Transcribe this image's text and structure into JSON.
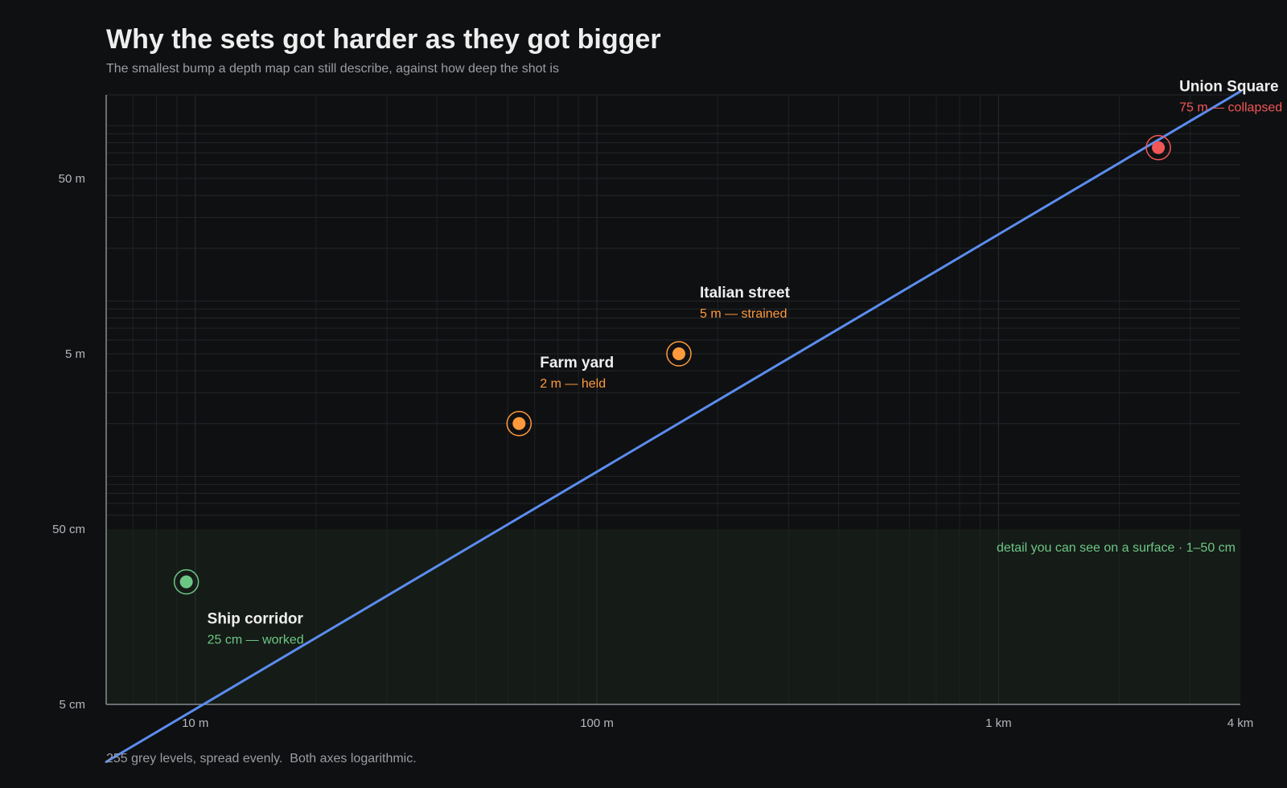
{
  "header": {
    "title": "Why the sets got harder as they got bigger",
    "subtitle": "The smallest bump a depth map can still describe, against how deep the shot is"
  },
  "footnote": "255 grey levels, spread evenly.  Both axes logarithmic.",
  "chart_data": {
    "type": "line",
    "title": "Why the sets got harder as they got bigger",
    "subtitle": "The smallest bump a depth map can still describe, against how deep the shot is",
    "x_scale": "log",
    "y_scale": "log",
    "xlim_m": [
      6,
      4000
    ],
    "ylim_m": [
      0.05,
      150
    ],
    "grid": true,
    "x_ticks": [
      {
        "value_m": 10,
        "label": "10 m"
      },
      {
        "value_m": 100,
        "label": "100 m"
      },
      {
        "value_m": 1000,
        "label": "1 km"
      },
      {
        "value_m": 4000,
        "label": "4 km"
      }
    ],
    "y_ticks": [
      {
        "value_m": 0.05,
        "label": "5 cm"
      },
      {
        "value_m": 0.5,
        "label": "50 cm"
      },
      {
        "value_m": 5,
        "label": "5 m"
      },
      {
        "value_m": 50,
        "label": "50 m"
      }
    ],
    "series": [
      {
        "color": "#5b8def",
        "x_m": [
          6,
          4000
        ],
        "y_m": [
          0.0235,
          157
        ]
      }
    ],
    "band": {
      "y_from_m": 0.05,
      "y_to_m": 0.5,
      "label": "detail you can see on a surface  ·  1–50 cm",
      "color": "#6cc785"
    },
    "annotations": [
      {
        "name": "Ship corridor",
        "status": "25 cm — worked",
        "depth_m": 9.5,
        "resolution_m": 0.25,
        "color": "#6cc785",
        "label_pos": "below-right"
      },
      {
        "name": "Farm yard",
        "status": "2 m — held",
        "depth_m": 64,
        "resolution_m": 2,
        "color": "#ff9a3c",
        "label_pos": "above-right"
      },
      {
        "name": "Italian street",
        "status": "5 m — strained",
        "depth_m": 160,
        "resolution_m": 5,
        "color": "#ff9a3c",
        "label_pos": "above-right"
      },
      {
        "name": "Union Square",
        "status": "75 m — collapsed",
        "depth_m": 2500,
        "resolution_m": 75,
        "color": "#f25757",
        "label_pos": "above-right"
      }
    ]
  }
}
